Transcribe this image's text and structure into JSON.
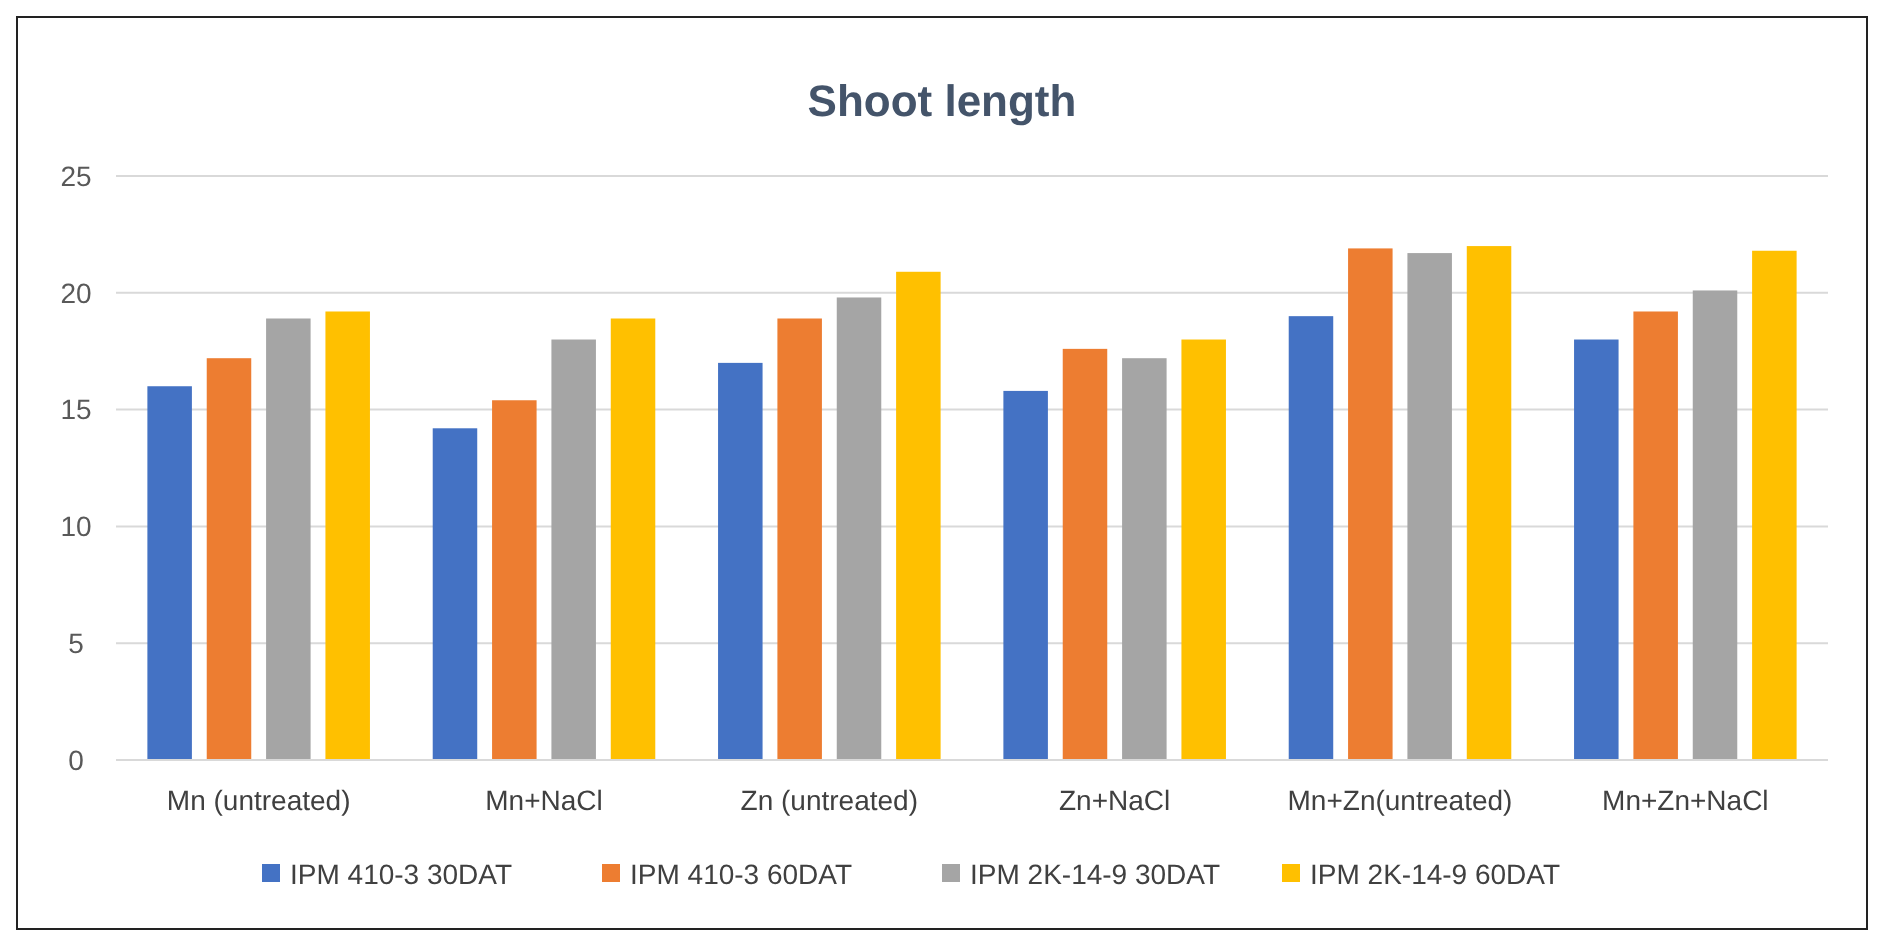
{
  "chart_data": {
    "type": "bar",
    "title": "Shoot length",
    "categories": [
      "Mn (untreated)",
      "Mn+NaCl",
      "Zn (untreated)",
      "Zn+NaCl",
      "Mn+Zn(untreated)",
      "Mn+Zn+NaCl"
    ],
    "series": [
      {
        "name": "IPM 410-3 30DAT",
        "color": "#4472c4",
        "values": [
          16.0,
          14.2,
          17.0,
          15.8,
          19.0,
          18.0
        ]
      },
      {
        "name": "IPM 410-3 60DAT",
        "color": "#ed7d31",
        "values": [
          17.2,
          15.4,
          18.9,
          17.6,
          21.9,
          19.2
        ]
      },
      {
        "name": "IPM 2K-14-9 30DAT",
        "color": "#a5a5a5",
        "values": [
          18.9,
          18.0,
          19.8,
          17.2,
          21.7,
          20.1
        ]
      },
      {
        "name": "IPM 2K-14-9 60DAT",
        "color": "#ffc000",
        "values": [
          19.2,
          18.9,
          20.9,
          18.0,
          22.0,
          21.8
        ]
      }
    ],
    "ylim": [
      0,
      25
    ],
    "yticks": [
      0,
      5,
      10,
      15,
      20,
      25
    ],
    "grid": "y",
    "legend": "bottom"
  }
}
